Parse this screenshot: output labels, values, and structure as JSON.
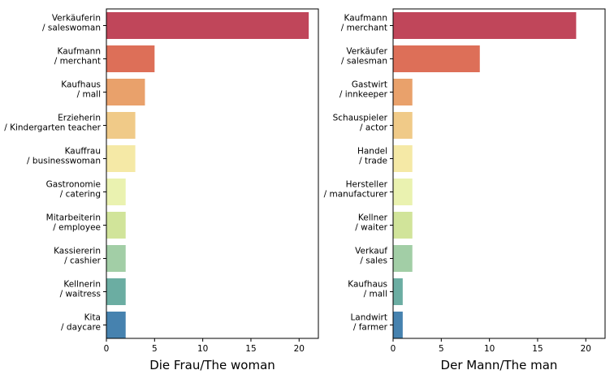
{
  "chart_data": [
    {
      "type": "bar",
      "orientation": "horizontal",
      "xlabel": "Die Frau/The woman",
      "ylabel": "",
      "xlim": [
        0,
        22
      ],
      "xticks": [
        "0",
        "5",
        "10",
        "15",
        "20"
      ],
      "grid": false,
      "categories": [
        [
          "Verkäuferin",
          "/ saleswoman"
        ],
        [
          "Kaufmann",
          "/ merchant"
        ],
        [
          "Kaufhaus",
          "/ mall"
        ],
        [
          "Erzieherin",
          "/ Kindergarten teacher"
        ],
        [
          "Kauffrau",
          "/ businesswoman"
        ],
        [
          "Gastronomie",
          "/ catering"
        ],
        [
          "Mitarbeiterin",
          "/ employee"
        ],
        [
          "Kassiererin",
          "/ cashier"
        ],
        [
          "Kellnerin",
          "/ waitress"
        ],
        [
          "Kita",
          "/ daycare"
        ]
      ],
      "values": [
        21,
        5,
        4,
        3,
        3,
        2,
        2,
        2,
        2,
        2
      ]
    },
    {
      "type": "bar",
      "orientation": "horizontal",
      "xlabel": "Der Mann/The man",
      "ylabel": "",
      "xlim": [
        0,
        22
      ],
      "xticks": [
        "0",
        "5",
        "10",
        "15",
        "20"
      ],
      "grid": false,
      "categories": [
        [
          "Kaufmann",
          "/ merchant"
        ],
        [
          "Verkäufer",
          "/ salesman"
        ],
        [
          "Gastwirt",
          "/ innkeeper"
        ],
        [
          "Schauspieler",
          "/ actor"
        ],
        [
          "Handel",
          "/ trade"
        ],
        [
          "Hersteller",
          "/ manufacturer"
        ],
        [
          "Kellner",
          "/ waiter"
        ],
        [
          "Verkauf",
          "/ sales"
        ],
        [
          "Kaufhaus",
          "/ mall"
        ],
        [
          "Landwirt",
          "/ farmer"
        ]
      ],
      "values": [
        19,
        9,
        2,
        2,
        2,
        2,
        2,
        2,
        1,
        1
      ]
    }
  ],
  "palette": [
    "#c0465a",
    "#dd6f58",
    "#e9a16b",
    "#f0ca88",
    "#f5e9a6",
    "#eaf2b0",
    "#d1e49a",
    "#a2cea6",
    "#6bada2",
    "#4682af"
  ]
}
